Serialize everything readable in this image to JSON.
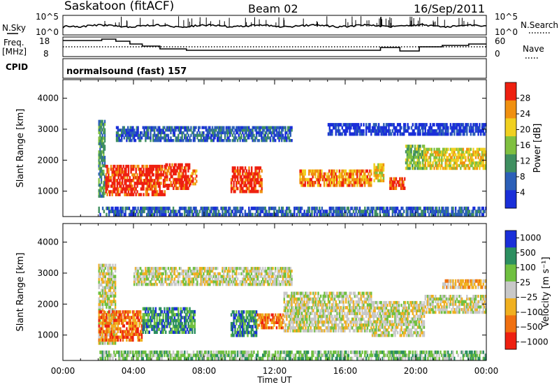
{
  "header": {
    "station": "Saskatoon  (fitACF)",
    "beam": "Beam 02",
    "date": "16/Sep/2011"
  },
  "noise_panel": {
    "left_label": "N.Sky",
    "right_label": "N.Search",
    "left_top_tick": "10^5",
    "left_bottom_tick": "10^0",
    "right_top_tick": "10^5",
    "right_bottom_tick": "10^0"
  },
  "freq_panel": {
    "left_label_1": "Freq.",
    "left_label_2": "[MHz]",
    "right_label": "Nave",
    "left_ticks": [
      "18",
      "8"
    ],
    "right_ticks": [
      "60",
      "0"
    ]
  },
  "cpid": {
    "label": "CPID",
    "value": "normalsound (fast) 157"
  },
  "chart_data": [
    {
      "type": "heatmap",
      "panel": "power",
      "xlabel": "",
      "ylabel": "Slant Range [km]",
      "xlim": [
        0,
        24
      ],
      "ylim": [
        180,
        4600
      ],
      "yticks": [
        1000,
        2000,
        3000,
        4000
      ],
      "colorbar": {
        "label": "Power [dB]",
        "ticks": [
          "4",
          "8",
          "12",
          "16",
          "20",
          "24",
          "28"
        ],
        "range": [
          0,
          30
        ]
      },
      "colors": [
        "#1a2fd9",
        "#2c5fb8",
        "#3f8f60",
        "#80c040",
        "#f0d020",
        "#f09010",
        "#ee2010"
      ],
      "regions": [
        {
          "t0": 2.0,
          "t1": 2.4,
          "r0": 800,
          "r1": 3300,
          "level": 2
        },
        {
          "t0": 2.4,
          "t1": 5.8,
          "r0": 850,
          "r1": 1850,
          "level": 6
        },
        {
          "t0": 5.8,
          "t1": 7.2,
          "r0": 1050,
          "r1": 1900,
          "level": 6
        },
        {
          "t0": 7.2,
          "t1": 7.6,
          "r0": 1200,
          "r1": 1700,
          "level": 5
        },
        {
          "t0": 9.5,
          "t1": 11.3,
          "r0": 950,
          "r1": 1800,
          "level": 6
        },
        {
          "t0": 13.4,
          "t1": 17.5,
          "r0": 1150,
          "r1": 1700,
          "level": 5
        },
        {
          "t0": 17.6,
          "t1": 18.2,
          "r0": 1300,
          "r1": 1900,
          "level": 4
        },
        {
          "t0": 18.5,
          "t1": 19.4,
          "r0": 1050,
          "r1": 1450,
          "level": 6
        },
        {
          "t0": 19.4,
          "t1": 20.5,
          "r0": 1700,
          "r1": 2500,
          "level": 3
        },
        {
          "t0": 20.5,
          "t1": 24.0,
          "r0": 1700,
          "r1": 2400,
          "level": 4
        },
        {
          "t0": 3.0,
          "t1": 13.0,
          "r0": 2600,
          "r1": 3100,
          "level": 1
        },
        {
          "t0": 15.0,
          "t1": 24.0,
          "r0": 2800,
          "r1": 3200,
          "level": 0
        },
        {
          "t0": 2.0,
          "t1": 24.0,
          "r0": 200,
          "r1": 500,
          "level": 1
        }
      ]
    },
    {
      "type": "heatmap",
      "panel": "velocity",
      "xlabel": "Time UT",
      "ylabel": "Slant Range [km]",
      "xlim": [
        0,
        24
      ],
      "ylim": [
        180,
        4600
      ],
      "yticks": [
        1000,
        2000,
        3000,
        4000
      ],
      "xticks": [
        "00:00",
        "04:00",
        "08:00",
        "12:00",
        "16:00",
        "20:00",
        "00:00"
      ],
      "colorbar": {
        "label": "Velocity [m s⁻¹]",
        "ticks": [
          "1000",
          "500",
          "100",
          "25",
          "−25",
          "−100",
          "−500",
          "−1000"
        ],
        "range": [
          -1200,
          1200
        ]
      },
      "colors": [
        "#1a2fd9",
        "#2c8f60",
        "#70c040",
        "#c8c8c8",
        "#f0b020",
        "#f07010",
        "#ee2010"
      ],
      "regions": [
        {
          "t0": 2.0,
          "t1": 3.0,
          "r0": 700,
          "r1": 3300,
          "level": 3
        },
        {
          "t0": 2.0,
          "t1": 4.5,
          "r0": 800,
          "r1": 1800,
          "level": 5
        },
        {
          "t0": 4.5,
          "t1": 7.5,
          "r0": 1050,
          "r1": 1900,
          "level": 1
        },
        {
          "t0": 9.5,
          "t1": 11.0,
          "r0": 950,
          "r1": 1800,
          "level": 1
        },
        {
          "t0": 11.0,
          "t1": 12.5,
          "r0": 1200,
          "r1": 1700,
          "level": 5
        },
        {
          "t0": 12.5,
          "t1": 17.5,
          "r0": 1100,
          "r1": 2400,
          "level": 3
        },
        {
          "t0": 17.5,
          "t1": 20.5,
          "r0": 950,
          "r1": 2100,
          "level": 3
        },
        {
          "t0": 20.5,
          "t1": 24.0,
          "r0": 1700,
          "r1": 2300,
          "level": 3
        },
        {
          "t0": 4.0,
          "t1": 13.0,
          "r0": 2600,
          "r1": 3200,
          "level": 3
        },
        {
          "t0": 21.5,
          "t1": 24.0,
          "r0": 2500,
          "r1": 2800,
          "level": 4
        },
        {
          "t0": 2.0,
          "t1": 24.0,
          "r0": 200,
          "r1": 500,
          "level": 2
        }
      ]
    }
  ]
}
